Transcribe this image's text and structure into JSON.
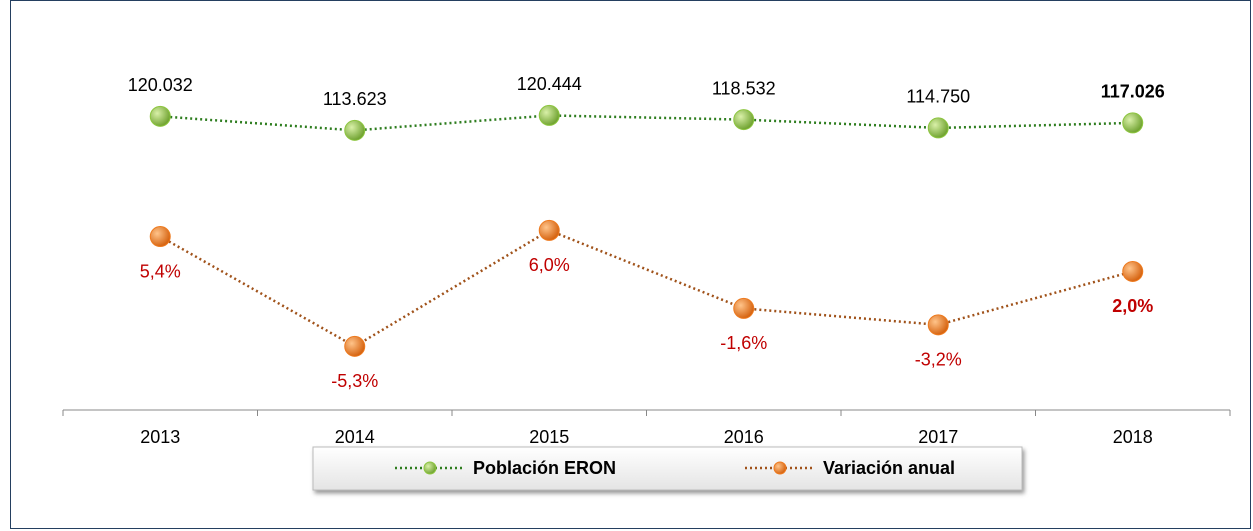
{
  "chart_data": {
    "type": "line",
    "categories": [
      "2013",
      "2014",
      "2015",
      "2016",
      "2017",
      "2018"
    ],
    "series": [
      {
        "name": "Población ERON",
        "color": "#2e7d1f",
        "marker_color": "#8dc63f",
        "values": [
          120032,
          113623,
          120444,
          118532,
          114750,
          117026
        ],
        "value_labels": [
          "120.032",
          "113.623",
          "120.444",
          "118.532",
          "114.750",
          "117.026"
        ],
        "label_color": "#000000"
      },
      {
        "name": "Variación anual",
        "color": "#a0521a",
        "marker_color": "#ee7a1e",
        "axis": "y2",
        "values": [
          5.4,
          -5.3,
          6.0,
          -1.6,
          -3.2,
          2.0
        ],
        "value_labels": [
          "5,4%",
          "-5,3%",
          "6,0%",
          "-1,6%",
          "-3,2%",
          "2,0%"
        ],
        "label_color": "#c00000"
      }
    ],
    "ylim": [
      -14000,
      164000
    ],
    "y2lim": [
      -11.5,
      26.5
    ],
    "legend": "bottom"
  }
}
